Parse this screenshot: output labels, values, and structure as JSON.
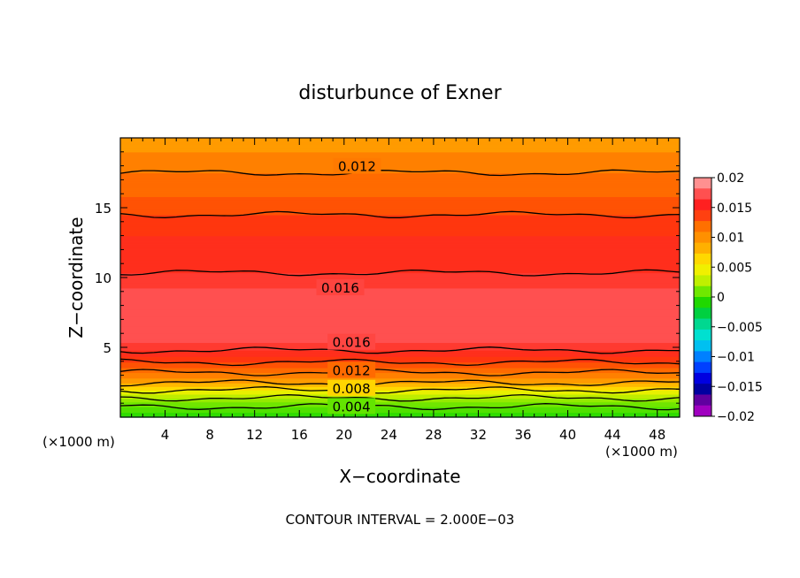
{
  "chart_data": {
    "type": "heatmap",
    "title": "disturbunce of Exner",
    "xlabel": "X−coordinate",
    "ylabel": "Z−coordinate",
    "x_unit": "(×1000 m)",
    "y_unit": "(×1000 m)",
    "footer": "CONTOUR INTERVAL = 2.000E−03",
    "xlim": [
      0,
      50
    ],
    "ylim": [
      0,
      20
    ],
    "x_ticks": [
      4,
      8,
      12,
      16,
      20,
      24,
      28,
      32,
      36,
      40,
      44,
      48
    ],
    "y_ticks": [
      5,
      10,
      15
    ],
    "contour_interval": 0.002,
    "profile": {
      "z": [
        0,
        0.5,
        1.0,
        1.5,
        2.0,
        2.5,
        3.0,
        3.5,
        4.0,
        4.5,
        5.0,
        5.5,
        6.0,
        6.5,
        7.0,
        8.0,
        9.0,
        10.0,
        11.0,
        12.0,
        13.0,
        14.0,
        15.0,
        16.0,
        17.0,
        18.0,
        19.0,
        20.0
      ],
      "value": [
        0.0015,
        0.0035,
        0.0045,
        0.0065,
        0.0082,
        0.0102,
        0.0115,
        0.0128,
        0.0142,
        0.0153,
        0.0165,
        0.0172,
        0.0176,
        0.0178,
        0.0179,
        0.0178,
        0.0173,
        0.0162,
        0.0156,
        0.0152,
        0.015,
        0.0143,
        0.0137,
        0.0128,
        0.0122,
        0.0118,
        0.011,
        0.0105
      ]
    },
    "contour_labels": [
      {
        "text": "0.012",
        "x": 19.5,
        "z": 18.0
      },
      {
        "text": "0.016",
        "x": 18.0,
        "z": 9.3
      },
      {
        "text": "0.016",
        "x": 19.0,
        "z": 5.4
      },
      {
        "text": "0.012",
        "x": 19.0,
        "z": 3.4
      },
      {
        "text": "0.008",
        "x": 19.0,
        "z": 2.1
      },
      {
        "text": "0.004",
        "x": 19.0,
        "z": 0.8
      }
    ],
    "colorbar": {
      "labels": [
        "0.02",
        "0.015",
        "0.01",
        "0.005",
        "0",
        "−0.005",
        "−0.01",
        "−0.015",
        "−0.02"
      ],
      "colors": [
        "#ff9090",
        "#ff5050",
        "#ff2020",
        "#ff4010",
        "#ff7000",
        "#ff9000",
        "#ffb000",
        "#ffd800",
        "#f0f000",
        "#c0f000",
        "#70e800",
        "#20d800",
        "#00d040",
        "#00d890",
        "#00e0d0",
        "#00c0f0",
        "#0080ff",
        "#0040ff",
        "#0000e0",
        "#0000a0",
        "#6000a0",
        "#a000c0"
      ]
    }
  }
}
